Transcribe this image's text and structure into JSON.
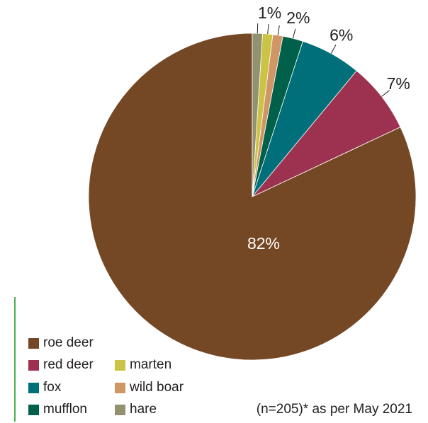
{
  "chart_data": {
    "type": "pie",
    "categories": [
      "roe deer",
      "red deer",
      "fox",
      "mufflon",
      "wild boar",
      "marten",
      "hare"
    ],
    "values": [
      82,
      7,
      6,
      2,
      1,
      1,
      1
    ],
    "data_labels": [
      "82%",
      "7%",
      "6%",
      "2%",
      "",
      "1%",
      ""
    ],
    "colors": [
      "#744825",
      "#9d3150",
      "#006f7a",
      "#00604a",
      "#d19665",
      "#cbc345",
      "#929270"
    ],
    "start": "12 o'clock",
    "direction": "counter-clockwise",
    "legend_placement": "bottom-left"
  },
  "legend": {
    "items": [
      {
        "label": "roe deer",
        "color": "#744825"
      },
      {
        "label": "red deer",
        "color": "#9d3150"
      },
      {
        "label": "marten",
        "color": "#cbc345"
      },
      {
        "label": "fox",
        "color": "#006f7a"
      },
      {
        "label": "wild boar",
        "color": "#d19665"
      },
      {
        "label": "mufflon",
        "color": "#00604a"
      },
      {
        "label": "hare",
        "color": "#929270"
      }
    ]
  },
  "note": "(n=205)* as per May 2021",
  "accent_color": "#4caf50"
}
